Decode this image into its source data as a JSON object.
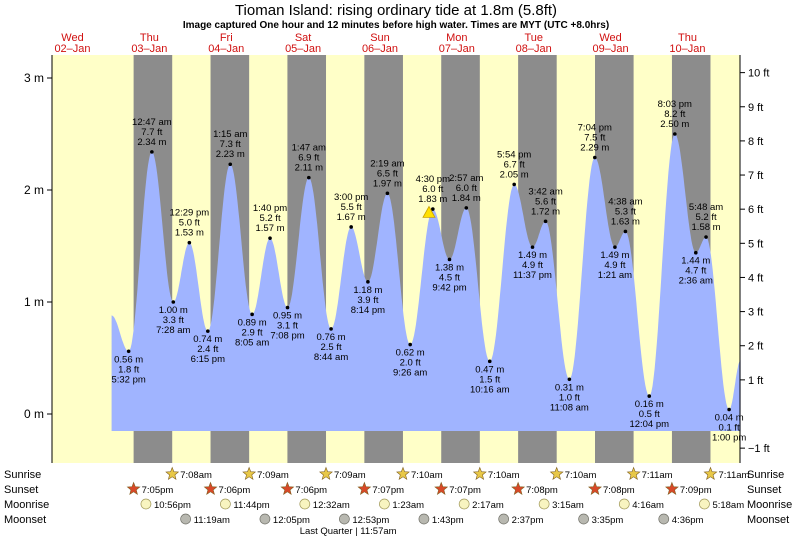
{
  "header": {
    "title": "Tioman Island: rising  ordinary tide at 1.8m (5.8ft)",
    "subtitle": "Image captured One hour and 12 minutes before high water. Times are MYT (UTC +8.0hrs)"
  },
  "chart_data": {
    "type": "area",
    "yaxis_left": {
      "unit": "m",
      "ylim": [
        -0.4,
        3.2
      ],
      "ticks": [
        0,
        1,
        2,
        3
      ],
      "tick_labels": [
        "0 m",
        "1 m",
        "2 m",
        "3 m"
      ]
    },
    "yaxis_right": {
      "unit": "ft",
      "ticks": [
        -1,
        1,
        2,
        3,
        4,
        5,
        6,
        7,
        8,
        9,
        10
      ],
      "tick_labels": [
        "−1 ft",
        "1 ft",
        "2 ft",
        "3 ft",
        "4 ft",
        "5 ft",
        "6 ft",
        "7 ft",
        "8 ft",
        "9 ft",
        "10 ft"
      ]
    },
    "x_start_hour": -6.4,
    "x_end_hour": 208.4,
    "days": [
      {
        "dow": "Wed",
        "date": "02–Jan",
        "offset": 0
      },
      {
        "dow": "Thu",
        "date": "03–Jan",
        "offset": 1
      },
      {
        "dow": "Fri",
        "date": "04–Jan",
        "offset": 2
      },
      {
        "dow": "Sat",
        "date": "05–Jan",
        "offset": 3
      },
      {
        "dow": "Sun",
        "date": "06–Jan",
        "offset": 4
      },
      {
        "dow": "Mon",
        "date": "07–Jan",
        "offset": 5
      },
      {
        "dow": "Tue",
        "date": "08–Jan",
        "offset": 6
      },
      {
        "dow": "Wed",
        "date": "09–Jan",
        "offset": 7
      },
      {
        "dow": "Thu",
        "date": "10–Jan",
        "offset": 8
      }
    ],
    "nights": [
      {
        "start": 19.08,
        "end": 31.13
      },
      {
        "start": 43.1,
        "end": 55.15
      },
      {
        "start": 67.1,
        "end": 79.15
      },
      {
        "start": 91.12,
        "end": 103.17
      },
      {
        "start": 115.12,
        "end": 127.17
      },
      {
        "start": 139.13,
        "end": 151.17
      },
      {
        "start": 163.13,
        "end": 175.18
      },
      {
        "start": 187.15,
        "end": 199.18
      }
    ],
    "tides": [
      {
        "hour": 17.53,
        "m": 0.56,
        "time": "5:32 pm",
        "ft": "1.8 ft",
        "mtxt": "0.56 m",
        "pos": "below"
      },
      {
        "hour": 24.78,
        "m": 2.34,
        "time": "12:47 am",
        "ft": "7.7 ft",
        "mtxt": "2.34 m",
        "pos": "above"
      },
      {
        "hour": 31.47,
        "m": 1.0,
        "time": "7:28 am",
        "ft": "3.3 ft",
        "mtxt": "1.00 m",
        "pos": "below"
      },
      {
        "hour": 36.48,
        "m": 1.53,
        "time": "12:29 pm",
        "ft": "5.0 ft",
        "mtxt": "1.53 m",
        "pos": "above"
      },
      {
        "hour": 42.25,
        "m": 0.74,
        "time": "6:15 pm",
        "ft": "2.4 ft",
        "mtxt": "0.74 m",
        "pos": "below"
      },
      {
        "hour": 49.25,
        "m": 2.23,
        "time": "1:15 am",
        "ft": "7.3 ft",
        "mtxt": "2.23 m",
        "pos": "above"
      },
      {
        "hour": 56.08,
        "m": 0.89,
        "time": "8:05 am",
        "ft": "2.9 ft",
        "mtxt": "0.89 m",
        "pos": "below"
      },
      {
        "hour": 61.67,
        "m": 1.57,
        "time": "1:40 pm",
        "ft": "5.2 ft",
        "mtxt": "1.57 m",
        "pos": "above"
      },
      {
        "hour": 67.13,
        "m": 0.95,
        "time": "7:08 pm",
        "ft": "3.1 ft",
        "mtxt": "0.95 m",
        "pos": "below"
      },
      {
        "hour": 73.78,
        "m": 2.11,
        "time": "1:47 am",
        "ft": "6.9 ft",
        "mtxt": "2.11 m",
        "pos": "above"
      },
      {
        "hour": 80.73,
        "m": 0.76,
        "time": "8:44 am",
        "ft": "2.5 ft",
        "mtxt": "0.76 m",
        "pos": "below"
      },
      {
        "hour": 87.0,
        "m": 1.67,
        "time": "3:00 pm",
        "ft": "5.5 ft",
        "mtxt": "1.67 m",
        "pos": "above"
      },
      {
        "hour": 92.23,
        "m": 1.18,
        "time": "8:14 pm",
        "ft": "3.9 ft",
        "mtxt": "1.18 m",
        "pos": "below"
      },
      {
        "hour": 98.32,
        "m": 1.97,
        "time": "2:19 am",
        "ft": "6.5 ft",
        "mtxt": "1.97 m",
        "pos": "above"
      },
      {
        "hour": 105.43,
        "m": 0.62,
        "time": "9:26 am",
        "ft": "2.0 ft",
        "mtxt": "0.62 m",
        "pos": "below"
      },
      {
        "hour": 112.5,
        "m": 1.83,
        "time": "4:30 pm",
        "ft": "6.0 ft",
        "mtxt": "1.83 m",
        "pos": "above"
      },
      {
        "hour": 117.7,
        "m": 1.38,
        "time": "9:42 pm",
        "ft": "4.5 ft",
        "mtxt": "1.38 m",
        "pos": "below"
      },
      {
        "hour": 122.95,
        "m": 1.84,
        "time": "2:57 am",
        "ft": "6.0 ft",
        "mtxt": "1.84 m",
        "pos": "above"
      },
      {
        "hour": 130.27,
        "m": 0.47,
        "time": "10:16 am",
        "ft": "1.5 ft",
        "mtxt": "0.47 m",
        "pos": "below"
      },
      {
        "hour": 137.9,
        "m": 2.05,
        "time": "5:54 pm",
        "ft": "6.7 ft",
        "mtxt": "2.05 m",
        "pos": "above"
      },
      {
        "hour": 143.62,
        "m": 1.49,
        "time": "11:37 pm",
        "ft": "4.9 ft",
        "mtxt": "1.49 m",
        "pos": "below"
      },
      {
        "hour": 147.7,
        "m": 1.72,
        "time": "3:42 am",
        "ft": "5.6 ft",
        "mtxt": "1.72 m",
        "pos": "above"
      },
      {
        "hour": 155.13,
        "m": 0.31,
        "time": "11:08 am",
        "ft": "1.0 ft",
        "mtxt": "0.31 m",
        "pos": "below"
      },
      {
        "hour": 163.07,
        "m": 2.29,
        "time": "7:04 pm",
        "ft": "7.5 ft",
        "mtxt": "2.29 m",
        "pos": "above"
      },
      {
        "hour": 169.35,
        "m": 1.49,
        "time": "1:21 am",
        "ft": "4.9 ft",
        "mtxt": "1.49 m",
        "pos": "below"
      },
      {
        "hour": 172.63,
        "m": 1.63,
        "time": "4:38 am",
        "ft": "5.3 ft",
        "mtxt": "1.63 m",
        "pos": "above"
      },
      {
        "hour": 180.07,
        "m": 0.16,
        "time": "12:04 pm",
        "ft": "0.5 ft",
        "mtxt": "0.16 m",
        "pos": "below"
      },
      {
        "hour": 188.05,
        "m": 2.5,
        "time": "8:03 pm",
        "ft": "8.2 ft",
        "mtxt": "2.50 m",
        "pos": "above"
      },
      {
        "hour": 194.6,
        "m": 1.44,
        "time": "2:36 am",
        "ft": "4.7 ft",
        "mtxt": "1.44 m",
        "pos": "below"
      },
      {
        "hour": 197.8,
        "m": 1.58,
        "time": "5:48 am",
        "ft": "5.2 ft",
        "mtxt": "1.58 m",
        "pos": "above"
      },
      {
        "hour": 205.0,
        "m": 0.04,
        "time": "1:00 pm",
        "ft": "0.1 ft",
        "mtxt": "0.04 m",
        "pos": "below"
      }
    ],
    "current": {
      "hour": 111.3,
      "m": 1.8
    },
    "curve_start_m": 0.88,
    "curve_end_m": 0.48,
    "almanac": {
      "row_labels": [
        "Sunrise",
        "Sunset",
        "Moonrise",
        "Moonset"
      ],
      "sunrise": [
        {
          "hour": 31.13,
          "time": "7:08am"
        },
        {
          "hour": 55.15,
          "time": "7:09am"
        },
        {
          "hour": 79.15,
          "time": "7:09am"
        },
        {
          "hour": 103.17,
          "time": "7:10am"
        },
        {
          "hour": 127.17,
          "time": "7:10am"
        },
        {
          "hour": 151.17,
          "time": "7:10am"
        },
        {
          "hour": 175.18,
          "time": "7:11am"
        },
        {
          "hour": 199.18,
          "time": "7:11am"
        }
      ],
      "sunset": [
        {
          "hour": 19.08,
          "time": "7:05pm"
        },
        {
          "hour": 43.1,
          "time": "7:06pm"
        },
        {
          "hour": 67.1,
          "time": "7:06pm"
        },
        {
          "hour": 91.12,
          "time": "7:07pm"
        },
        {
          "hour": 115.12,
          "time": "7:07pm"
        },
        {
          "hour": 139.13,
          "time": "7:08pm"
        },
        {
          "hour": 163.13,
          "time": "7:08pm"
        },
        {
          "hour": 187.15,
          "time": "7:09pm"
        }
      ],
      "moonrise": [
        {
          "hour": 22.93,
          "time": "10:56pm"
        },
        {
          "hour": 47.73,
          "time": "11:44pm"
        },
        {
          "hour": 72.53,
          "time": "12:32am"
        },
        {
          "hour": 97.38,
          "time": "1:23am"
        },
        {
          "hour": 122.28,
          "time": "2:17am"
        },
        {
          "hour": 147.25,
          "time": "3:15am"
        },
        {
          "hour": 172.27,
          "time": "4:16am"
        },
        {
          "hour": 197.3,
          "time": "5:18am"
        }
      ],
      "moonset": [
        {
          "hour": 35.32,
          "time": "11:19am"
        },
        {
          "hour": 60.08,
          "time": "12:05pm"
        },
        {
          "hour": 84.88,
          "time": "12:53pm"
        },
        {
          "hour": 109.72,
          "time": "1:43pm"
        },
        {
          "hour": 134.62,
          "time": "2:37pm"
        },
        {
          "hour": 159.58,
          "time": "3:35pm"
        },
        {
          "hour": 184.6,
          "time": "4:36pm"
        }
      ],
      "note": "Last Quarter | 11:57am",
      "note_hour": 85.0
    },
    "colors": {
      "day": "#ffffc8",
      "night": "#8c8c8c",
      "water": "#a0b4ff",
      "sun_star": "#e8c848",
      "sunset_star": "#d84828",
      "moonrise": "#f8f4c0",
      "moonset": "#b8b8b0",
      "marker": "#ffe000"
    }
  }
}
